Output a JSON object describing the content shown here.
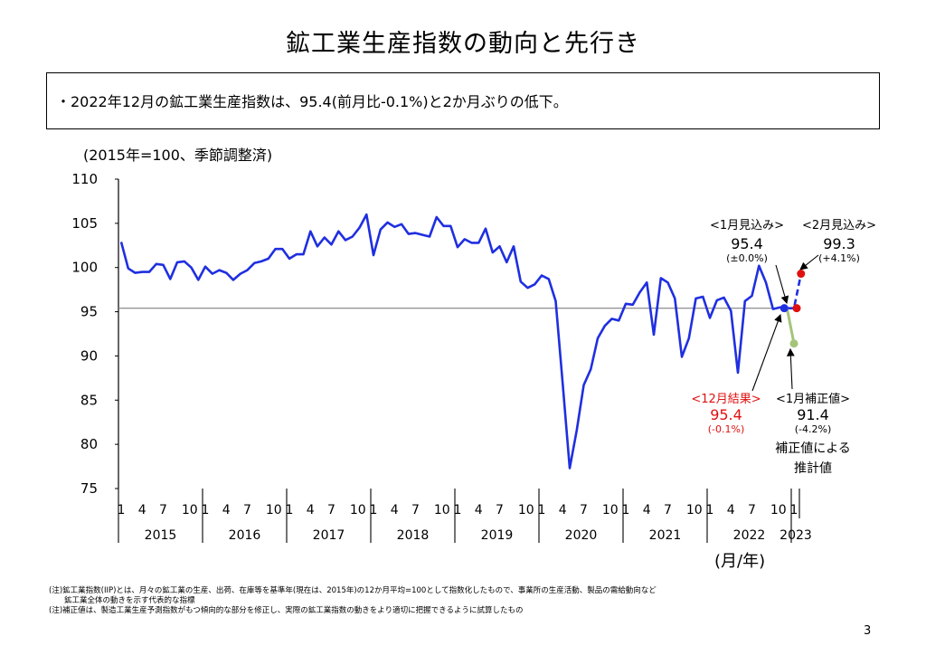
{
  "title": "鉱工業生産指数の動向と先行き",
  "summary": "・2022年12月の鉱工業生産指数は、95.4(前月比-0.1%)と2か月ぶりの低下。",
  "unit_label": "(2015年=100、季節調整済)",
  "axis_unit": "(月/年)",
  "page_number": "3",
  "notes": [
    "(注)鉱工業指数(IIP)とは、月々の鉱工業の生産、出荷、在庫等を基準年(現在は、2015年)の12か月平均=100として指数化したもので、事業所の生産活動、製品の需給動向など",
    "　　鉱工業全体の動きを示す代表的な指標",
    "(注)補正値は、製造工業生産予測指数がもつ傾向的な部分を修正し、実際の鉱工業指数の動きをより適切に把握できるように試算したもの"
  ],
  "annotations": {
    "jan_forecast": {
      "label": "<1月見込み>",
      "value": "95.4",
      "change": "(±0.0%)"
    },
    "feb_forecast": {
      "label": "<2月見込み>",
      "value": "99.3",
      "change": "(+4.1%)"
    },
    "dec_result": {
      "label": "<12月結果>",
      "value": "95.4",
      "change": "(-0.1%)"
    },
    "jan_corrected": {
      "label": "<1月補正値>",
      "value": "91.4",
      "change": "(-4.2%)",
      "note_line1": "補正値による",
      "note_line2": "推計値"
    }
  },
  "colors": {
    "actual": "#1f2fe0",
    "forecast_point": "#e01010",
    "corrected": "#a3c47a",
    "reference": "#808080",
    "result_text": "#e01010"
  },
  "chart_data": {
    "type": "line",
    "title": "鉱工業生産指数の動向と先行き",
    "ylabel": "(2015年=100、季節調整済)",
    "xlabel": "(月/年)",
    "ylim": [
      75,
      110
    ],
    "yticks": [
      75,
      80,
      85,
      90,
      95,
      100,
      105,
      110
    ],
    "month_ticks": [
      "1",
      "4",
      "7",
      "10"
    ],
    "years": [
      "2015",
      "2016",
      "2017",
      "2018",
      "2019",
      "2020",
      "2021",
      "2022",
      "2023"
    ],
    "start": "2015-01",
    "reference_line": 95.4,
    "series": [
      {
        "name": "actual",
        "style": "solid",
        "values": [
          102.9,
          99.9,
          99.4,
          99.5,
          99.5,
          100.4,
          100.3,
          98.7,
          100.6,
          100.7,
          100.0,
          98.6,
          100.1,
          99.3,
          99.7,
          99.4,
          98.6,
          99.3,
          99.7,
          100.5,
          100.7,
          101.0,
          102.1,
          102.1,
          101.0,
          101.5,
          101.5,
          104.1,
          102.4,
          103.4,
          102.6,
          104.1,
          103.1,
          103.5,
          104.5,
          106.0,
          101.4,
          104.3,
          105.1,
          104.6,
          104.9,
          103.8,
          103.9,
          103.7,
          103.5,
          105.7,
          104.7,
          104.7,
          102.3,
          103.2,
          102.8,
          102.8,
          104.4,
          101.7,
          102.4,
          100.6,
          102.4,
          98.4,
          97.7,
          98.1,
          99.1,
          98.7,
          96.2,
          86.8,
          77.3,
          81.6,
          86.7,
          88.5,
          92.0,
          93.4,
          94.2,
          94.0,
          95.9,
          95.8,
          97.2,
          98.3,
          92.4,
          98.8,
          98.3,
          96.5,
          89.9,
          92.0,
          96.5,
          96.7,
          94.3,
          96.3,
          96.6,
          95.1,
          88.1,
          96.2,
          96.8,
          100.2,
          98.3,
          95.3,
          95.5,
          95.4
        ]
      },
      {
        "name": "forecast",
        "style": "dashed",
        "months": [
          "2022-12",
          "2023-01",
          "2023-02"
        ],
        "values": [
          95.4,
          95.4,
          99.3
        ]
      },
      {
        "name": "corrected",
        "style": "solid",
        "months": [
          "2022-12",
          "2023-01"
        ],
        "values": [
          95.4,
          91.4
        ]
      }
    ],
    "points": [
      {
        "name": "dec-result",
        "month": "2022-12",
        "value": 95.4,
        "color": "#1f2fe0"
      },
      {
        "name": "jan-forecast",
        "month": "2023-01",
        "value": 95.4,
        "color": "#e01010"
      },
      {
        "name": "feb-forecast",
        "month": "2023-02",
        "value": 99.3,
        "color": "#e01010"
      },
      {
        "name": "jan-corrected",
        "month": "2023-01",
        "value": 91.4,
        "color": "#a3c47a"
      }
    ]
  }
}
